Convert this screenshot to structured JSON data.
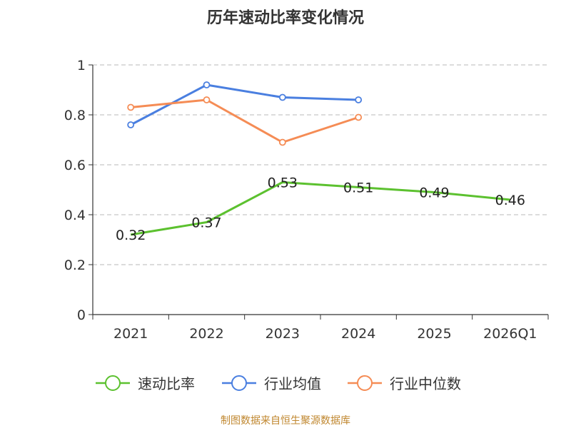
{
  "chart_data": {
    "type": "line",
    "title": "历年速动比率变化情况",
    "categories": [
      "2021",
      "2022",
      "2023",
      "2024",
      "2025",
      "2026Q1"
    ],
    "ylim": [
      0,
      1
    ],
    "yticks": [
      0,
      0.2,
      0.4,
      0.6,
      0.8,
      1
    ],
    "ytick_labels": [
      "0",
      "0.2",
      "0.4",
      "0.6",
      "0.8",
      "1"
    ],
    "grid": true,
    "legend_position": "bottom",
    "series": [
      {
        "name": "速动比率",
        "color": "#5cc12f",
        "values": [
          0.32,
          0.37,
          0.53,
          0.51,
          0.49,
          0.46
        ],
        "labels": [
          "0.32",
          "0.37",
          "0.53",
          "0.51",
          "0.49",
          "0.46"
        ],
        "show_markers": false,
        "show_labels": true
      },
      {
        "name": "行业均值",
        "color": "#4a7fe0",
        "values": [
          0.76,
          0.92,
          0.87,
          0.86,
          null,
          null
        ],
        "show_markers": true,
        "show_labels": false
      },
      {
        "name": "行业中位数",
        "color": "#f58c55",
        "values": [
          0.83,
          0.86,
          0.69,
          0.79,
          null,
          null
        ],
        "show_markers": true,
        "show_labels": false
      }
    ],
    "source": "制图数据来自恒生聚源数据库"
  }
}
